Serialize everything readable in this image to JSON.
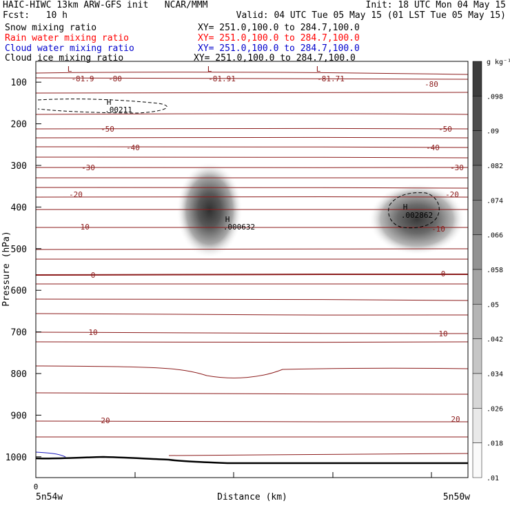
{
  "header": {
    "title": "HAIC-HIWC 13km ARW-GFS init   NCAR/MMM",
    "init": "Init: 18 UTC Mon 04 May 15",
    "fcst": "Fcst:   10 h",
    "valid": "Valid: 04 UTC Tue 05 May 15 (01 LST Tue 05 May 15)",
    "fields": [
      {
        "name": "Snow mixing ratio",
        "xy": "XY= 251.0,100.0 to 284.7,100.0",
        "color": "#000000"
      },
      {
        "name": "Rain water mixing ratio",
        "xy": "XY= 251.0,100.0 to 284.7,100.0",
        "color": "#ff0000"
      },
      {
        "name": "Cloud water mixing ratio",
        "xy": "XY= 251.0,100.0 to 284.7,100.0",
        "color": "#0000cc"
      },
      {
        "name": "Cloud ice mixing ratio",
        "xy": "XY= 251.0,100.0 to 284.7,100.0",
        "color": "#000000"
      }
    ]
  },
  "chart_data": {
    "type": "contour-cross-section",
    "ylabel": "Pressure (hPa)",
    "xlabel": "Distance (km)",
    "x_left_label": "5n54w",
    "x_right_label": "5n50w",
    "x_origin_label": "0",
    "y_ticks": [
      100,
      200,
      300,
      400,
      500,
      600,
      700,
      800,
      900,
      1000
    ],
    "ylim": [
      50,
      1050
    ],
    "colorbar": {
      "unit": "g kg⁻¹",
      "labels": [
        ".098",
        ".09",
        ".082",
        ".074",
        ".066",
        ".058",
        ".05",
        ".042",
        ".034",
        ".026",
        ".018",
        ".01"
      ]
    },
    "temperature_contours": {
      "color": "#8b1a1a",
      "labels": [
        "-80",
        "-80",
        "-50",
        "-50",
        "-40",
        "-40",
        "-30",
        "-30",
        "-20",
        "-20",
        "-10",
        "-10",
        "0",
        "0",
        "10",
        "10",
        "20",
        "20"
      ],
      "levels": [
        -80,
        -70,
        -60,
        -50,
        -40,
        -30,
        -20,
        -10,
        0,
        10,
        20
      ]
    },
    "extrema_labels": [
      {
        "mark": "L",
        "value": "-81.9"
      },
      {
        "mark": "L",
        "value": "-81.91"
      },
      {
        "mark": "L",
        "value": "-81.71"
      },
      {
        "mark": "H",
        "value": ".00211"
      },
      {
        "mark": "H",
        "value": ".000632"
      },
      {
        "mark": "H",
        "value": ".002862"
      }
    ],
    "shaded_maxima": [
      {
        "name": "left-blob",
        "x_frac": 0.447,
        "pressure": 410,
        "value": 0.09
      },
      {
        "name": "right-blob",
        "x_frac": 0.925,
        "pressure": 425,
        "value": 0.08
      }
    ]
  }
}
